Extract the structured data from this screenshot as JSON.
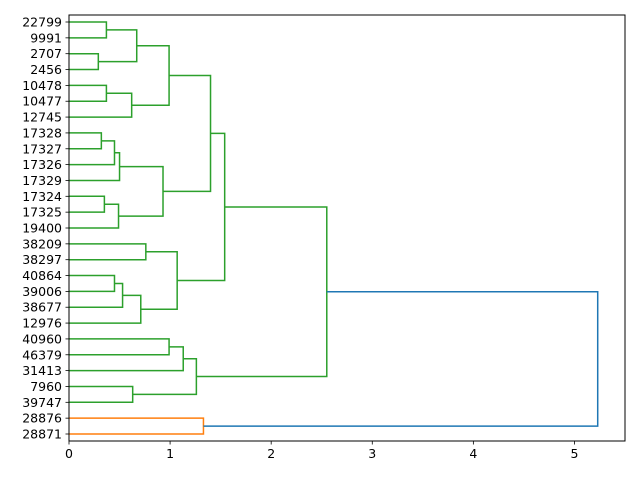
{
  "chart_data": {
    "type": "dendrogram",
    "orientation": "horizontal",
    "title": "",
    "xlabel": "",
    "ylabel": "",
    "xlim": [
      0,
      5.5
    ],
    "xticks": [
      "0",
      "1",
      "2",
      "3",
      "4",
      "5"
    ],
    "xtick_values": [
      0,
      1,
      2,
      3,
      4,
      5
    ],
    "leaves": [
      "22799",
      "9991",
      "2707",
      "2456",
      "10478",
      "10477",
      "12745",
      "17328",
      "17327",
      "17326",
      "17329",
      "17324",
      "17325",
      "19400",
      "38209",
      "38297",
      "40864",
      "39006",
      "38677",
      "12976",
      "40960",
      "46379",
      "31413",
      "7960",
      "39747",
      "28876",
      "28871"
    ],
    "colors": {
      "C0": "#1f77b4",
      "C1": "#ff7f0e",
      "C2": "#2ca02c"
    },
    "links": [
      {
        "a": 0,
        "b": 1,
        "d": 0.37,
        "c": "C2"
      },
      {
        "a": 2,
        "b": 3,
        "d": 0.29,
        "c": "C2"
      },
      {
        "a": "L0",
        "b": "L1",
        "d": 0.67,
        "c": "C2"
      },
      {
        "a": 4,
        "b": 5,
        "d": 0.37,
        "c": "C2"
      },
      {
        "a": "L3",
        "b": 6,
        "d": 0.62,
        "c": "C2"
      },
      {
        "a": "L2",
        "b": "L4",
        "d": 0.99,
        "c": "C2"
      },
      {
        "a": 7,
        "b": 8,
        "d": 0.32,
        "c": "C2"
      },
      {
        "a": "L6",
        "b": 9,
        "d": 0.45,
        "c": "C2"
      },
      {
        "a": "L7",
        "b": 10,
        "d": 0.5,
        "c": "C2"
      },
      {
        "a": 11,
        "b": 12,
        "d": 0.35,
        "c": "C2"
      },
      {
        "a": "L9",
        "b": 13,
        "d": 0.49,
        "c": "C2"
      },
      {
        "a": "L8",
        "b": "L10",
        "d": 0.93,
        "c": "C2"
      },
      {
        "a": "L5",
        "b": "L11",
        "d": 1.4,
        "c": "C2"
      },
      {
        "a": 14,
        "b": 15,
        "d": 0.76,
        "c": "C2"
      },
      {
        "a": 16,
        "b": 17,
        "d": 0.45,
        "c": "C2"
      },
      {
        "a": "L14",
        "b": 18,
        "d": 0.53,
        "c": "C2"
      },
      {
        "a": "L15",
        "b": 19,
        "d": 0.71,
        "c": "C2"
      },
      {
        "a": "L13",
        "b": "L16",
        "d": 1.07,
        "c": "C2"
      },
      {
        "a": "L12",
        "b": "L17",
        "d": 1.54,
        "c": "C2"
      },
      {
        "a": 20,
        "b": 21,
        "d": 0.99,
        "c": "C2"
      },
      {
        "a": "L19",
        "b": 22,
        "d": 1.13,
        "c": "C2"
      },
      {
        "a": 23,
        "b": 24,
        "d": 0.63,
        "c": "C2"
      },
      {
        "a": "L20",
        "b": "L21",
        "d": 1.26,
        "c": "C2"
      },
      {
        "a": "L18",
        "b": "L22",
        "d": 2.55,
        "c": "C2"
      },
      {
        "a": 25,
        "b": 26,
        "d": 1.33,
        "c": "C1"
      },
      {
        "a": "L23",
        "b": "L24",
        "d": 5.23,
        "c": "C0"
      }
    ]
  }
}
